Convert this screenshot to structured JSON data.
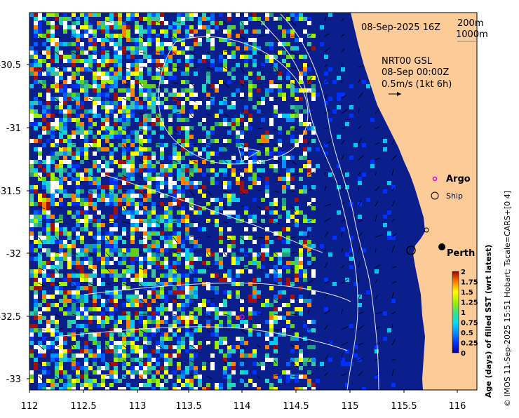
{
  "map": {
    "date_label": "08-Sep-2025 16Z",
    "depth_contours": [
      "200m",
      "1000m"
    ],
    "current_source": "NRT00 GSL",
    "current_time": "08-Sep 00:00Z",
    "current_scale": "0.5m/s (1kt 6h)",
    "legend": {
      "argo": "Argo",
      "ship": "Ship"
    },
    "city": "Perth",
    "x_ticks": [
      "112",
      "112.5",
      "113",
      "113.5",
      "114",
      "114.5",
      "115",
      "115.5",
      "116"
    ],
    "y_ticks": [
      "-30.5",
      "-31",
      "-31.5",
      "-32",
      "-32.5",
      "-33"
    ],
    "colorbar": {
      "title": "Age (days) of filled SST (wrt latest)",
      "ticks": [
        "2",
        "1.75",
        "1.5",
        "1.25",
        "1",
        "0.75",
        "0.5",
        "0.25",
        "0"
      ]
    },
    "credit": "© IMOS 11-Sep-2025 15:51 Hobart; Tscale=CARS+[0 4]",
    "colors": {
      "land": "#fccb98",
      "ocean_base": "#0a1f8c",
      "argo": "#e000e0"
    }
  }
}
